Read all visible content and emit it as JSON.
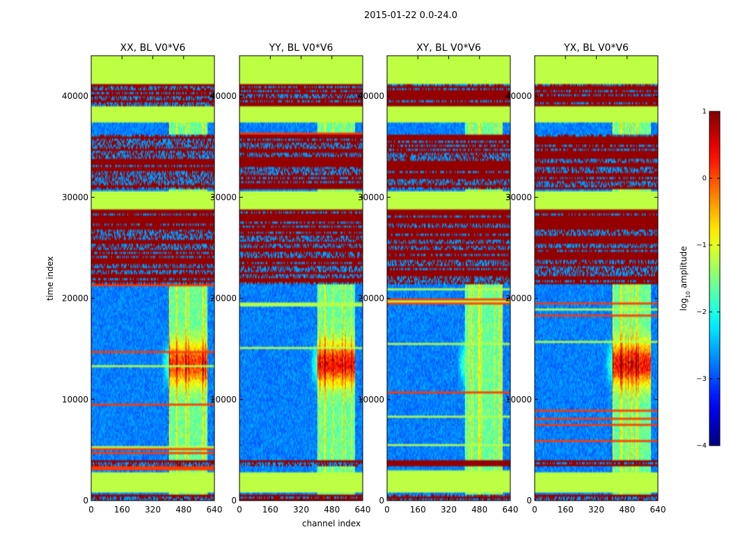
{
  "chart_data": {
    "type": "heatmap",
    "suptitle": "2015-01-22 0.0-24.0",
    "xlabel": "channel index",
    "ylabel": "time index",
    "xlim": [
      0,
      640
    ],
    "ylim": [
      0,
      44000
    ],
    "xticks": [
      "0",
      "160",
      "320",
      "480",
      "640"
    ],
    "xtick_values": [
      0,
      160,
      320,
      480,
      640
    ],
    "yticks": [
      "0",
      "10000",
      "20000",
      "30000",
      "40000"
    ],
    "ytick_values": [
      0,
      10000,
      20000,
      30000,
      40000
    ],
    "colormap": "jet",
    "colorbar": {
      "label": "log",
      "label_sub": "10",
      "label_rest": " amplitude",
      "vmin": -4,
      "vmax": 1,
      "ticks": [
        "1",
        "0",
        "−1",
        "−2",
        "−3",
        "−4"
      ],
      "tick_values": [
        1,
        0,
        -1,
        -2,
        -3,
        -4
      ]
    },
    "panels": [
      {
        "title": "XX, BL V0*V6",
        "active_band": [
          405,
          605
        ],
        "peak": 0.95
      },
      {
        "title": "YY, BL V0*V6",
        "active_band": [
          405,
          600
        ],
        "peak": 1.0
      },
      {
        "title": "XY, BL V0*V6",
        "active_band": [
          405,
          600
        ],
        "peak": 0.55
      },
      {
        "title": "YX, BL V0*V6",
        "active_band": [
          405,
          605
        ],
        "peak": 1.0
      }
    ],
    "flagged_time_ranges": [
      [
        0,
        500
      ],
      [
        800,
        2800
      ],
      [
        3400,
        3900
      ],
      [
        37500,
        39500
      ],
      [
        30800,
        36200
      ],
      [
        27000,
        30500
      ],
      [
        21500,
        27000
      ],
      [
        39500,
        41000
      ],
      [
        41000,
        44000
      ]
    ],
    "uniform_time_ranges": [
      [
        800,
        2800
      ],
      [
        37500,
        39000
      ],
      [
        28800,
        30500
      ],
      [
        41300,
        44000
      ]
    ]
  },
  "colors": {
    "flagged_uniform": "#99ff55",
    "flagged_dark": "#800000",
    "background": "#ffffff"
  }
}
